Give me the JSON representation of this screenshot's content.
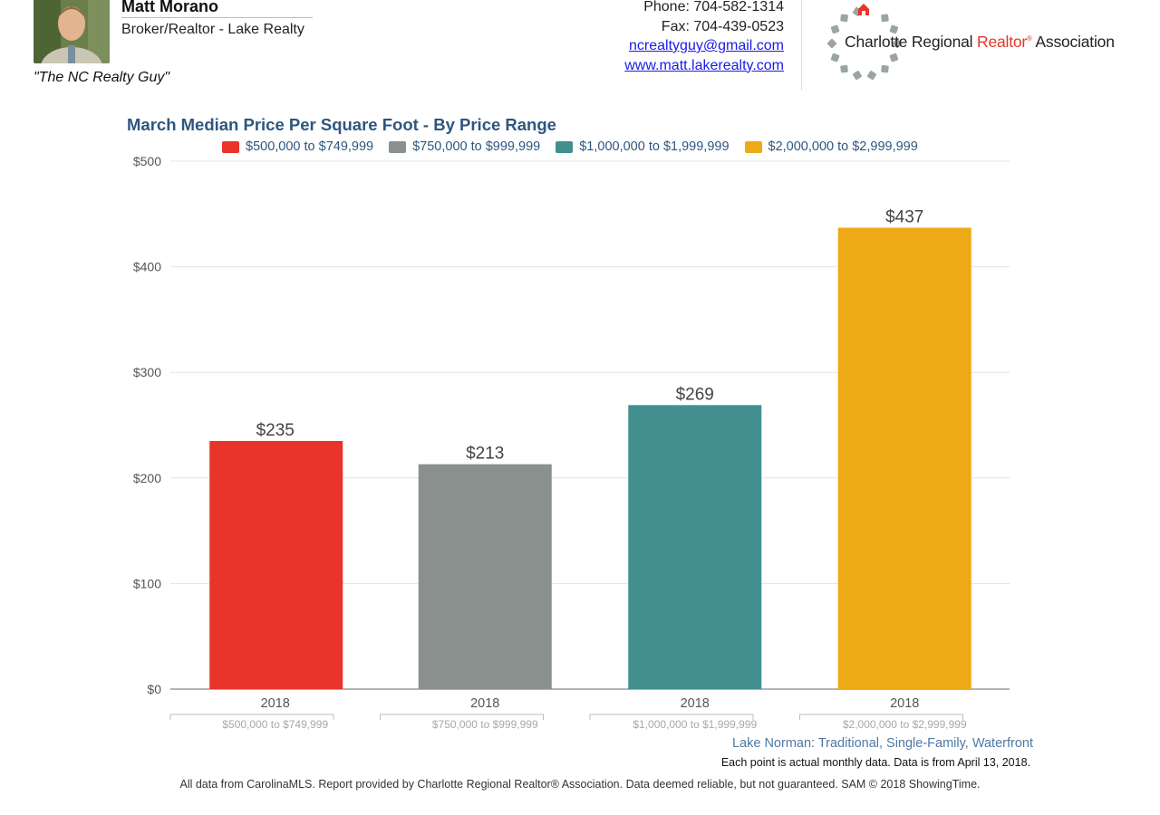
{
  "agent": {
    "name": "Matt Morano",
    "title": "Broker/Realtor - Lake Realty",
    "tagline": "\"The NC Realty Guy\""
  },
  "contact": {
    "phone": "Phone: 704-582-1314",
    "fax": "Fax: 704-439-0523",
    "email": "ncrealtyguy@gmail.com",
    "website": "www.matt.lakerealty.com"
  },
  "logo": {
    "name_part1": "Charlotte Regional ",
    "name_realtor": "Realtor",
    "registered": "®",
    "name_part2": " Association",
    "ring_color": "#9aa5a0",
    "house_color": "#e8342a"
  },
  "chart_data": {
    "type": "bar",
    "title": "March Median Price Per Square Foot - By Price Range",
    "series": [
      {
        "name": "$500,000 to $749,999",
        "color": "#e8342a",
        "value": 235,
        "label": "$235"
      },
      {
        "name": "$750,000 to $999,999",
        "color": "#8a908e",
        "value": 213,
        "label": "$213"
      },
      {
        "name": "$1,000,000 to $1,999,999",
        "color": "#41908f",
        "value": 269,
        "label": "$269"
      },
      {
        "name": "$2,000,000 to $2,999,999",
        "color": "#edaa16",
        "value": 437,
        "label": "$437"
      }
    ],
    "categories": [
      "2018",
      "2018",
      "2018",
      "2018"
    ],
    "group_labels": [
      "$500,000 to $749,999",
      "$750,000 to $999,999",
      "$1,000,000 to $1,999,999",
      "$2,000,000 to $2,999,999"
    ],
    "yticks": [
      {
        "value": 0,
        "label": "$0"
      },
      {
        "value": 100,
        "label": "$100"
      },
      {
        "value": 200,
        "label": "$200"
      },
      {
        "value": 300,
        "label": "$300"
      },
      {
        "value": 400,
        "label": "$400"
      },
      {
        "value": 500,
        "label": "$500"
      }
    ],
    "ylim": [
      0,
      500
    ],
    "grid": true,
    "legend_position": "top",
    "subtitle": "Lake Norman: Traditional, Single-Family, Waterfront",
    "note": "Each point is actual monthly data. Data is from April 13, 2018."
  },
  "footer": "All data from CarolinaMLS. Report provided by Charlotte Regional Realtor® Association. Data deemed reliable, but not guaranteed. SAM © 2018 ShowingTime."
}
